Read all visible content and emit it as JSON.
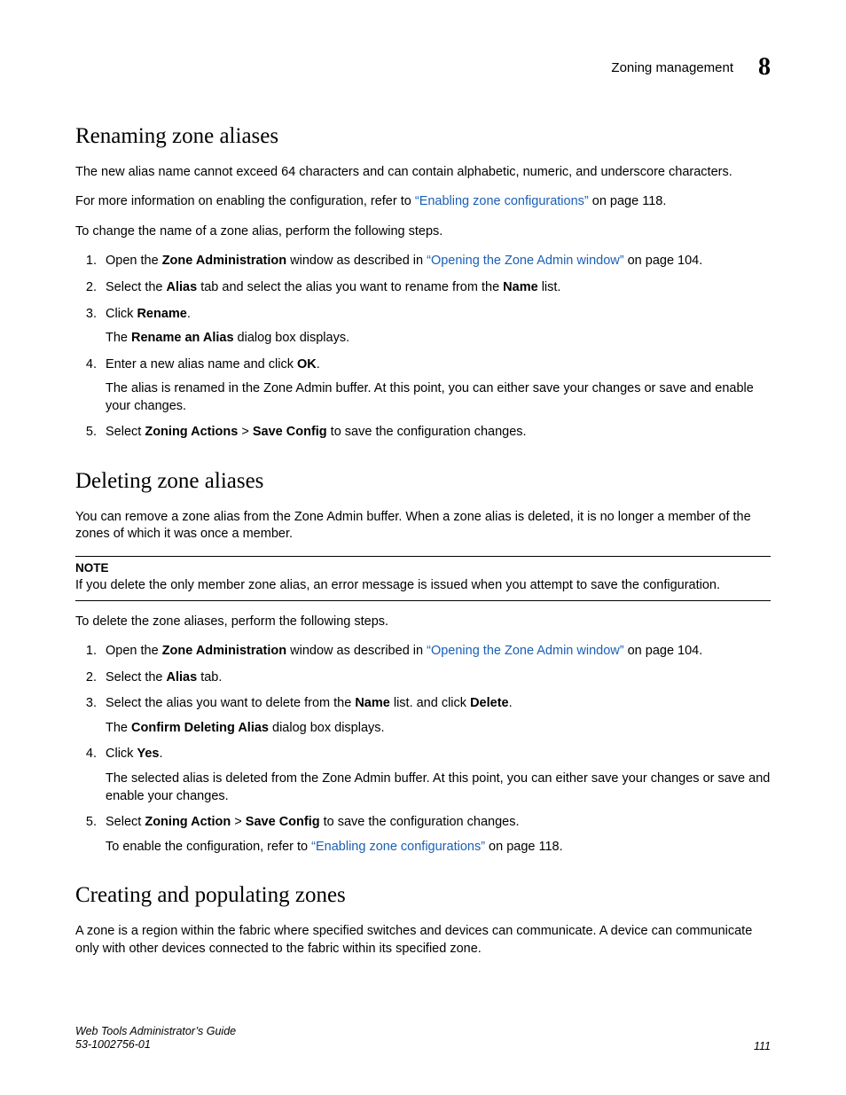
{
  "header": {
    "section": "Zoning management",
    "chapter": "8"
  },
  "h_renaming": "Renaming zone aliases",
  "p_renaming_intro": "The new alias name cannot exceed 64 characters and can contain alphabetic, numeric, and underscore characters.",
  "p_moreinfo_a": "For more information on enabling the configuration, refer to ",
  "p_moreinfo_link": "“Enabling zone configurations”",
  "p_moreinfo_b": " on page 118.",
  "p_tochange": "To change the name of a zone alias, perform the following steps.",
  "s1_a": "Open the ",
  "s1_bold": "Zone Administration",
  "s1_b": " window as described in ",
  "s1_link": "“Opening the Zone Admin window”",
  "s1_c": " on page 104.",
  "s2_a": "Select the ",
  "s2_b1": "Alias",
  "s2_b": " tab and select the alias you want to rename from the ",
  "s2_b2": "Name",
  "s2_c": " list.",
  "s3_a": "Click ",
  "s3_b": "Rename",
  "s3_c": ".",
  "s3_sub_a": "The ",
  "s3_sub_b": "Rename an Alias",
  "s3_sub_c": " dialog box displays.",
  "s4_a": "Enter a new alias name and click ",
  "s4_b": "OK",
  "s4_c": ".",
  "s4_sub": "The alias is renamed in the Zone Admin buffer. At this point, you can either save your changes or save and enable your changes.",
  "s5_a": "Select ",
  "s5_b1": "Zoning Actions",
  "s5_gt": " > ",
  "s5_b2": "Save Config",
  "s5_c": " to save the configuration changes.",
  "h_deleting": "Deleting zone aliases",
  "p_del_intro": "You can remove a zone alias from the Zone Admin buffer. When a zone alias is deleted, it is no longer a member of the zones of which it was once a member.",
  "note_label": "NOTE",
  "note_body": "If you delete the only member zone alias, an error message is issued when you attempt to save the configuration.",
  "p_todelete": "To delete the zone aliases, perform the following steps.",
  "d2_a": "Select the ",
  "d2_b": "Alias",
  "d2_c": " tab.",
  "d3_a": "Select the alias you want to delete from the ",
  "d3_b1": "Name",
  "d3_b": " list. and click ",
  "d3_b2": "Delete",
  "d3_c": ".",
  "d3_sub_a": "The ",
  "d3_sub_b": "Confirm Deleting Alias",
  "d3_sub_c": " dialog box displays.",
  "d4_a": "Click ",
  "d4_b": "Yes",
  "d4_c": ".",
  "d4_sub": "The selected alias is deleted from the Zone Admin buffer. At this point, you can either save your changes or save and enable your changes.",
  "d5_a": "Select ",
  "d5_b1": "Zoning Action",
  "d5_b2": "Save Config",
  "d5_c": " to save the configuration changes.",
  "d5_sub_a": "To enable the configuration, refer to ",
  "d5_sub_link": "“Enabling zone configurations”",
  "d5_sub_b": " on page 118.",
  "h_creating": "Creating and populating zones",
  "p_creating": "A zone is a region within the fabric where specified switches and devices can communicate. A device can communicate only with other devices connected to the fabric within its specified zone.",
  "footer": {
    "title": "Web Tools Administrator’s Guide",
    "doc": "53-1002756-01",
    "page": "111"
  }
}
